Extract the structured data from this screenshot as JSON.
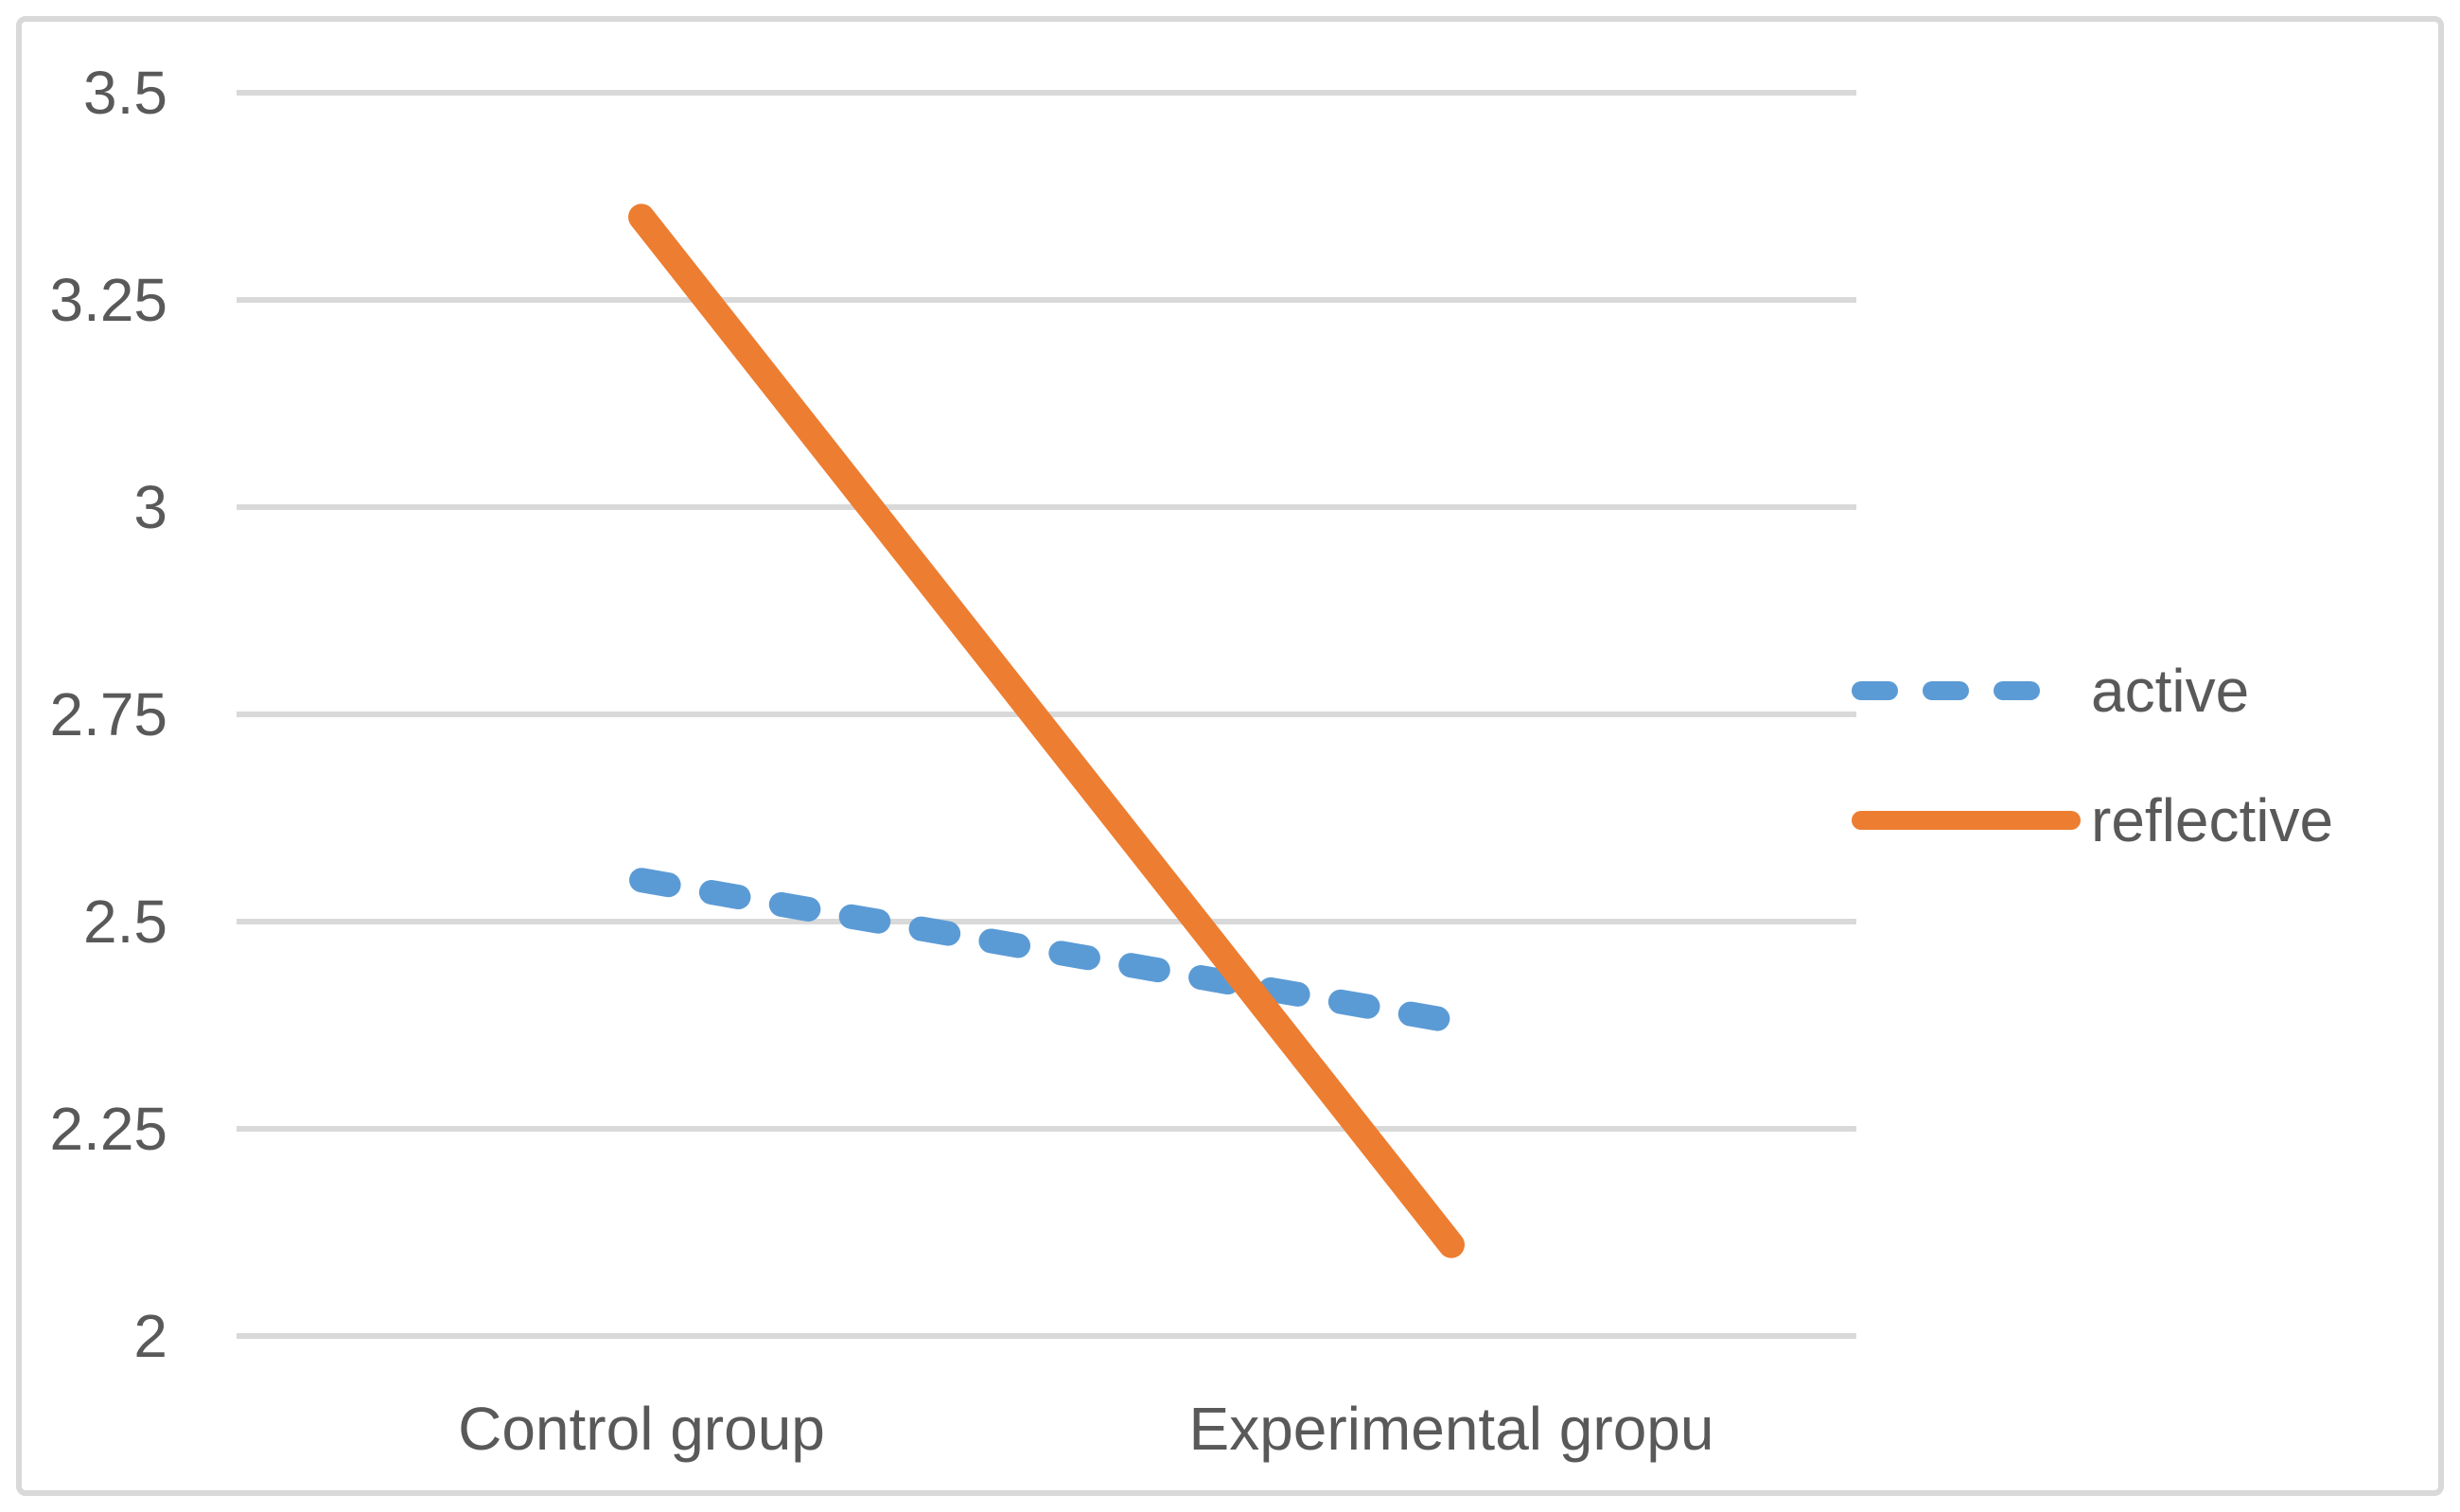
{
  "chart_data": {
    "type": "line",
    "title": "",
    "xlabel": "",
    "ylabel": "",
    "categories": [
      "Control group",
      "Experimental gropu"
    ],
    "series": [
      {
        "name": "active",
        "values": [
          2.55,
          2.38
        ],
        "color": "#5B9BD5",
        "style": "dashed",
        "stroke_width": 26
      },
      {
        "name": "reflective",
        "values": [
          3.35,
          2.11
        ],
        "color": "#ED7D31",
        "style": "solid",
        "stroke_width": 28
      }
    ],
    "ylim": [
      2,
      3.5
    ],
    "ytick_labels": [
      "3.5",
      "3.25",
      "3",
      "2.75",
      "2.5",
      "2.25",
      "2"
    ],
    "ytick_values": [
      3.5,
      3.25,
      3,
      2.75,
      2.5,
      2.25,
      2
    ],
    "grid": "horizontal-only",
    "legend_position": "right",
    "colors": {
      "gridline": "#D9D9D9",
      "frame_border": "#D9D9D9",
      "text": "#595959",
      "background": "#FFFFFF"
    }
  }
}
